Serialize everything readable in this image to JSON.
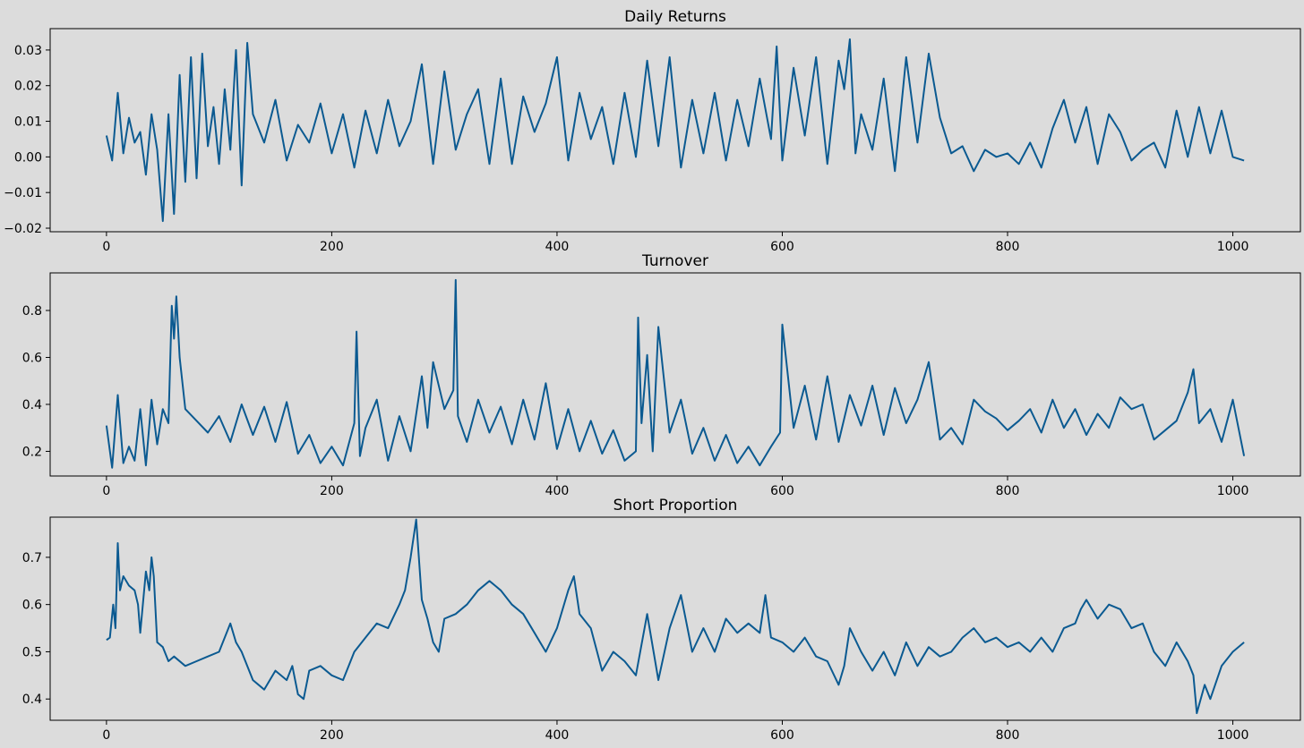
{
  "chart_data": [
    {
      "type": "line",
      "title": "Daily Returns",
      "xlabel": "",
      "ylabel": "",
      "xlim": [
        -50,
        1060
      ],
      "ylim": [
        -0.021,
        0.036
      ],
      "x_ticks": [
        0,
        200,
        400,
        600,
        800,
        1000
      ],
      "x_tick_labels": [
        "0",
        "200",
        "400",
        "600",
        "800",
        "1000"
      ],
      "y_ticks": [
        -0.02,
        -0.01,
        0.0,
        0.01,
        0.02,
        0.03
      ],
      "y_tick_labels": [
        "−0.02",
        "−0.01",
        "0.00",
        "0.01",
        "0.02",
        "0.03"
      ],
      "grid": false,
      "line_color": "#0b5a91",
      "series": [
        {
          "x": [
            0,
            5,
            10,
            15,
            20,
            25,
            30,
            35,
            40,
            45,
            50,
            55,
            60,
            65,
            70,
            75,
            80,
            85,
            90,
            95,
            100,
            105,
            110,
            115,
            120,
            125,
            130,
            140,
            150,
            160,
            170,
            180,
            190,
            200,
            210,
            220,
            230,
            240,
            250,
            260,
            270,
            280,
            290,
            300,
            310,
            320,
            330,
            340,
            350,
            360,
            370,
            380,
            390,
            400,
            410,
            420,
            430,
            440,
            450,
            460,
            470,
            480,
            490,
            500,
            510,
            520,
            530,
            540,
            550,
            560,
            570,
            580,
            590,
            595,
            600,
            610,
            620,
            630,
            640,
            650,
            655,
            660,
            665,
            670,
            680,
            690,
            700,
            710,
            720,
            730,
            740,
            750,
            760,
            770,
            780,
            790,
            800,
            810,
            820,
            830,
            840,
            850,
            860,
            870,
            880,
            890,
            900,
            910,
            920,
            930,
            940,
            950,
            960,
            970,
            980,
            990,
            1000,
            1010
          ],
          "values": [
            0.006,
            -0.001,
            0.018,
            0.001,
            0.011,
            0.004,
            0.007,
            -0.005,
            0.012,
            0.002,
            -0.018,
            0.012,
            -0.016,
            0.023,
            -0.007,
            0.028,
            -0.006,
            0.029,
            0.003,
            0.014,
            -0.002,
            0.019,
            0.002,
            0.03,
            -0.008,
            0.032,
            0.012,
            0.004,
            0.016,
            -0.001,
            0.009,
            0.004,
            0.015,
            0.001,
            0.012,
            -0.003,
            0.013,
            0.001,
            0.016,
            0.003,
            0.01,
            0.026,
            -0.002,
            0.024,
            0.002,
            0.012,
            0.019,
            -0.002,
            0.022,
            -0.002,
            0.017,
            0.007,
            0.015,
            0.028,
            -0.001,
            0.018,
            0.005,
            0.014,
            -0.002,
            0.018,
            0.0,
            0.027,
            0.003,
            0.028,
            -0.003,
            0.016,
            0.001,
            0.018,
            -0.001,
            0.016,
            0.003,
            0.022,
            0.005,
            0.031,
            -0.001,
            0.025,
            0.006,
            0.028,
            -0.002,
            0.027,
            0.019,
            0.033,
            0.001,
            0.012,
            0.002,
            0.022,
            -0.004,
            0.028,
            0.004,
            0.029,
            0.011,
            0.001,
            0.003,
            -0.004,
            0.002,
            0.0,
            0.001,
            -0.002,
            0.004,
            -0.003,
            0.008,
            0.016,
            0.004,
            0.014,
            -0.002,
            0.012,
            0.007,
            -0.001,
            0.002,
            0.004,
            -0.003,
            0.013,
            0.0,
            0.014,
            0.001,
            0.013,
            0.0,
            -0.001
          ]
        }
      ]
    },
    {
      "type": "line",
      "title": "Turnover",
      "xlabel": "",
      "ylabel": "",
      "xlim": [
        -50,
        1060
      ],
      "ylim": [
        0.095,
        0.96
      ],
      "x_ticks": [
        0,
        200,
        400,
        600,
        800,
        1000
      ],
      "x_tick_labels": [
        "0",
        "200",
        "400",
        "600",
        "800",
        "1000"
      ],
      "y_ticks": [
        0.2,
        0.4,
        0.6,
        0.8
      ],
      "y_tick_labels": [
        "0.2",
        "0.4",
        "0.6",
        "0.8"
      ],
      "grid": false,
      "line_color": "#0b5a91",
      "series": [
        {
          "x": [
            0,
            5,
            10,
            15,
            20,
            25,
            30,
            35,
            40,
            45,
            50,
            55,
            58,
            60,
            62,
            65,
            70,
            80,
            90,
            100,
            110,
            120,
            130,
            140,
            150,
            160,
            170,
            180,
            190,
            200,
            210,
            220,
            222,
            225,
            230,
            240,
            250,
            260,
            270,
            280,
            285,
            290,
            300,
            308,
            310,
            312,
            320,
            330,
            340,
            350,
            360,
            370,
            380,
            390,
            400,
            410,
            420,
            430,
            440,
            450,
            460,
            470,
            472,
            475,
            480,
            485,
            490,
            500,
            510,
            520,
            530,
            540,
            550,
            560,
            570,
            580,
            590,
            598,
            600,
            610,
            620,
            630,
            640,
            650,
            660,
            670,
            680,
            690,
            700,
            710,
            720,
            730,
            740,
            750,
            760,
            770,
            780,
            790,
            800,
            810,
            820,
            830,
            840,
            850,
            860,
            870,
            880,
            890,
            900,
            910,
            920,
            930,
            940,
            950,
            960,
            965,
            970,
            980,
            990,
            1000,
            1010
          ],
          "values": [
            0.31,
            0.13,
            0.44,
            0.15,
            0.22,
            0.16,
            0.38,
            0.14,
            0.42,
            0.23,
            0.38,
            0.32,
            0.82,
            0.68,
            0.86,
            0.6,
            0.38,
            0.33,
            0.28,
            0.35,
            0.24,
            0.4,
            0.27,
            0.39,
            0.24,
            0.41,
            0.19,
            0.27,
            0.15,
            0.22,
            0.14,
            0.32,
            0.71,
            0.18,
            0.3,
            0.42,
            0.16,
            0.35,
            0.2,
            0.52,
            0.3,
            0.58,
            0.38,
            0.46,
            0.93,
            0.35,
            0.24,
            0.42,
            0.28,
            0.39,
            0.23,
            0.42,
            0.25,
            0.49,
            0.21,
            0.38,
            0.2,
            0.33,
            0.19,
            0.29,
            0.16,
            0.2,
            0.77,
            0.32,
            0.61,
            0.2,
            0.73,
            0.28,
            0.42,
            0.19,
            0.3,
            0.16,
            0.27,
            0.15,
            0.22,
            0.14,
            0.22,
            0.28,
            0.74,
            0.3,
            0.48,
            0.25,
            0.52,
            0.24,
            0.44,
            0.31,
            0.48,
            0.27,
            0.47,
            0.32,
            0.42,
            0.58,
            0.25,
            0.3,
            0.23,
            0.42,
            0.37,
            0.34,
            0.29,
            0.33,
            0.38,
            0.28,
            0.42,
            0.3,
            0.38,
            0.27,
            0.36,
            0.3,
            0.43,
            0.38,
            0.4,
            0.25,
            0.29,
            0.33,
            0.45,
            0.55,
            0.32,
            0.38,
            0.24,
            0.42,
            0.18
          ]
        }
      ]
    },
    {
      "type": "line",
      "title": "Short Proportion",
      "xlabel": "",
      "ylabel": "",
      "xlim": [
        -50,
        1060
      ],
      "ylim": [
        0.355,
        0.785
      ],
      "x_ticks": [
        0,
        200,
        400,
        600,
        800,
        1000
      ],
      "x_tick_labels": [
        "0",
        "200",
        "400",
        "600",
        "800",
        "1000"
      ],
      "y_ticks": [
        0.4,
        0.5,
        0.6,
        0.7
      ],
      "y_tick_labels": [
        "0.4",
        "0.5",
        "0.6",
        "0.7"
      ],
      "grid": false,
      "line_color": "#0b5a91",
      "series": [
        {
          "x": [
            0,
            3,
            6,
            8,
            10,
            12,
            15,
            20,
            25,
            28,
            30,
            35,
            38,
            40,
            42,
            45,
            50,
            55,
            60,
            70,
            80,
            90,
            100,
            110,
            115,
            120,
            130,
            140,
            150,
            160,
            165,
            170,
            175,
            180,
            190,
            200,
            210,
            220,
            230,
            240,
            250,
            260,
            265,
            270,
            275,
            280,
            285,
            290,
            295,
            300,
            310,
            320,
            330,
            340,
            345,
            350,
            360,
            370,
            380,
            390,
            400,
            410,
            415,
            420,
            430,
            440,
            450,
            460,
            470,
            480,
            490,
            500,
            510,
            520,
            530,
            540,
            550,
            560,
            570,
            580,
            585,
            590,
            600,
            610,
            620,
            630,
            640,
            650,
            655,
            660,
            670,
            680,
            690,
            700,
            710,
            720,
            730,
            740,
            750,
            760,
            770,
            780,
            790,
            800,
            810,
            820,
            830,
            840,
            850,
            860,
            865,
            870,
            880,
            890,
            900,
            910,
            920,
            930,
            940,
            950,
            960,
            965,
            968,
            975,
            980,
            990,
            1000,
            1010
          ],
          "values": [
            0.525,
            0.53,
            0.6,
            0.55,
            0.73,
            0.63,
            0.66,
            0.64,
            0.63,
            0.6,
            0.54,
            0.67,
            0.63,
            0.7,
            0.66,
            0.52,
            0.51,
            0.48,
            0.49,
            0.47,
            0.48,
            0.49,
            0.5,
            0.56,
            0.52,
            0.5,
            0.44,
            0.42,
            0.46,
            0.44,
            0.47,
            0.41,
            0.4,
            0.46,
            0.47,
            0.45,
            0.44,
            0.5,
            0.53,
            0.56,
            0.55,
            0.6,
            0.63,
            0.7,
            0.78,
            0.61,
            0.57,
            0.52,
            0.5,
            0.57,
            0.58,
            0.6,
            0.63,
            0.65,
            0.64,
            0.63,
            0.6,
            0.58,
            0.54,
            0.5,
            0.55,
            0.63,
            0.66,
            0.58,
            0.55,
            0.46,
            0.5,
            0.48,
            0.45,
            0.58,
            0.44,
            0.55,
            0.62,
            0.5,
            0.55,
            0.5,
            0.57,
            0.54,
            0.56,
            0.54,
            0.62,
            0.53,
            0.52,
            0.5,
            0.53,
            0.49,
            0.48,
            0.43,
            0.47,
            0.55,
            0.5,
            0.46,
            0.5,
            0.45,
            0.52,
            0.47,
            0.51,
            0.49,
            0.5,
            0.53,
            0.55,
            0.52,
            0.53,
            0.51,
            0.52,
            0.5,
            0.53,
            0.5,
            0.55,
            0.56,
            0.59,
            0.61,
            0.57,
            0.6,
            0.59,
            0.55,
            0.56,
            0.5,
            0.47,
            0.52,
            0.48,
            0.45,
            0.37,
            0.43,
            0.4,
            0.47,
            0.5,
            0.52
          ]
        }
      ]
    }
  ]
}
